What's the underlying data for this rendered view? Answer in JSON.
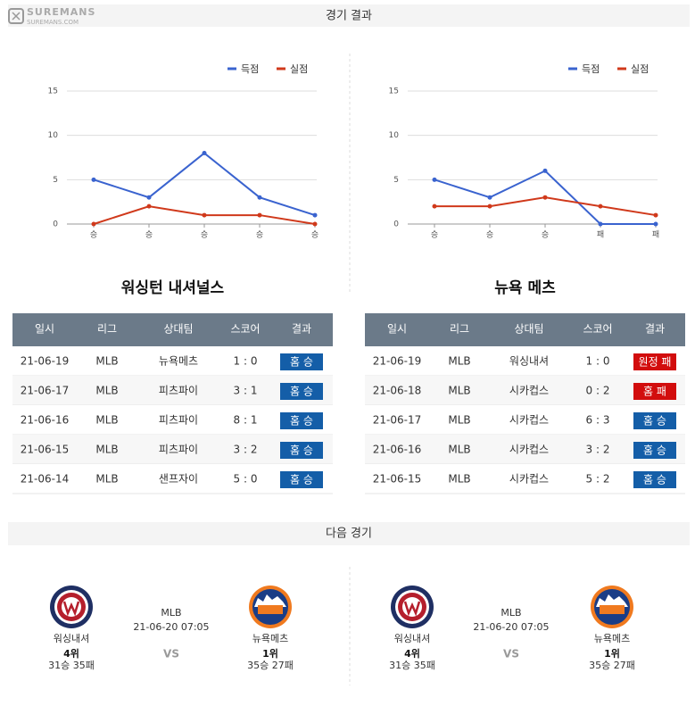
{
  "brand": {
    "name": "SUREMANS",
    "url": "SUREMANS.COM"
  },
  "results_title": "경기 결과",
  "charts": [
    {
      "type": "line",
      "categories": [
        "승",
        "승",
        "승",
        "승",
        "승"
      ],
      "series": [
        {
          "name": "득점",
          "color": "#3a63cf",
          "values": [
            5,
            3,
            8,
            3,
            1
          ]
        },
        {
          "name": "실점",
          "color": "#d0391b",
          "values": [
            0,
            2,
            1,
            1,
            0
          ]
        }
      ],
      "ylim": [
        0,
        15
      ],
      "yticks": [
        0,
        5,
        10,
        15
      ],
      "grid": true,
      "legend": "top-right"
    },
    {
      "type": "line",
      "categories": [
        "승",
        "승",
        "승",
        "패",
        "패"
      ],
      "series": [
        {
          "name": "득점",
          "color": "#3a63cf",
          "values": [
            5,
            3,
            6,
            0,
            0
          ]
        },
        {
          "name": "실점",
          "color": "#d0391b",
          "values": [
            2,
            2,
            3,
            2,
            1
          ]
        }
      ],
      "ylim": [
        0,
        15
      ],
      "yticks": [
        0,
        5,
        10,
        15
      ],
      "grid": true,
      "legend": "top-right"
    }
  ],
  "tables": [
    {
      "title": "워싱턴 내셔널스",
      "columns": [
        "일시",
        "리그",
        "상대팀",
        "스코어",
        "결과"
      ],
      "rows": [
        {
          "cells": [
            "21-06-19",
            "MLB",
            "뉴욕메츠",
            "1 : 0",
            "홈 승"
          ],
          "result_color": "#145ea8"
        },
        {
          "cells": [
            "21-06-17",
            "MLB",
            "피츠파이",
            "3 : 1",
            "홈 승"
          ],
          "result_color": "#145ea8"
        },
        {
          "cells": [
            "21-06-16",
            "MLB",
            "피츠파이",
            "8 : 1",
            "홈 승"
          ],
          "result_color": "#145ea8"
        },
        {
          "cells": [
            "21-06-15",
            "MLB",
            "피츠파이",
            "3 : 2",
            "홈 승"
          ],
          "result_color": "#145ea8"
        },
        {
          "cells": [
            "21-06-14",
            "MLB",
            "샌프자이",
            "5 : 0",
            "홈 승"
          ],
          "result_color": "#145ea8"
        }
      ]
    },
    {
      "title": "뉴욕 메츠",
      "columns": [
        "일시",
        "리그",
        "상대팀",
        "스코어",
        "결과"
      ],
      "rows": [
        {
          "cells": [
            "21-06-19",
            "MLB",
            "워싱내셔",
            "1 : 0",
            "원정 패"
          ],
          "result_color": "#d20d0d"
        },
        {
          "cells": [
            "21-06-18",
            "MLB",
            "시카컵스",
            "0 : 2",
            "홈 패"
          ],
          "result_color": "#d20d0d"
        },
        {
          "cells": [
            "21-06-17",
            "MLB",
            "시카컵스",
            "6 : 3",
            "홈 승"
          ],
          "result_color": "#145ea8"
        },
        {
          "cells": [
            "21-06-16",
            "MLB",
            "시카컵스",
            "3 : 2",
            "홈 승"
          ],
          "result_color": "#145ea8"
        },
        {
          "cells": [
            "21-06-15",
            "MLB",
            "시카컵스",
            "5 : 2",
            "홈 승"
          ],
          "result_color": "#145ea8"
        }
      ]
    }
  ],
  "next_title": "다음 경기",
  "next_games": [
    {
      "home": {
        "name": "워싱내셔",
        "rank": "4위",
        "record": "31승 35패"
      },
      "league": "MLB",
      "datetime": "21-06-20 07:05",
      "vs": "VS",
      "away": {
        "name": "뉴욕메츠",
        "rank": "1위",
        "record": "35승 27패"
      }
    },
    {
      "home": {
        "name": "워싱내셔",
        "rank": "4위",
        "record": "31승 35패"
      },
      "league": "MLB",
      "datetime": "21-06-20 07:05",
      "vs": "VS",
      "away": {
        "name": "뉴욕메츠",
        "rank": "1위",
        "record": "35승 27패"
      }
    }
  ]
}
